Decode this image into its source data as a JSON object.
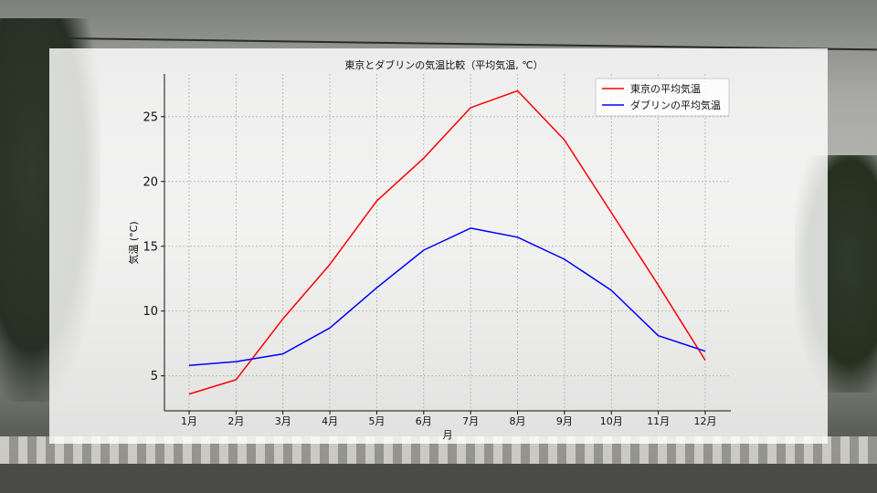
{
  "chart_data": {
    "type": "line",
    "title": "東京とダブリンの気温比較（平均気温, ℃）",
    "xlabel": "月",
    "ylabel": "気温 (°C)",
    "categories": [
      "1月",
      "2月",
      "3月",
      "4月",
      "5月",
      "6月",
      "7月",
      "8月",
      "9月",
      "10月",
      "11月",
      "12月"
    ],
    "ylim": [
      2.3,
      28.3
    ],
    "yticks": [
      5,
      10,
      15,
      20,
      25
    ],
    "grid": true,
    "legend_position": "top-right",
    "series": [
      {
        "name": "東京の平均気温",
        "color": "#ff0000",
        "values": [
          3.6,
          4.7,
          9.4,
          13.6,
          18.5,
          21.8,
          25.7,
          27.0,
          23.2,
          17.6,
          12.0,
          6.2
        ]
      },
      {
        "name": "ダブリンの平均気温",
        "color": "#0000ff",
        "values": [
          5.8,
          6.1,
          6.7,
          8.7,
          11.8,
          14.7,
          16.4,
          15.7,
          14.0,
          11.6,
          8.1,
          6.9
        ]
      }
    ]
  }
}
